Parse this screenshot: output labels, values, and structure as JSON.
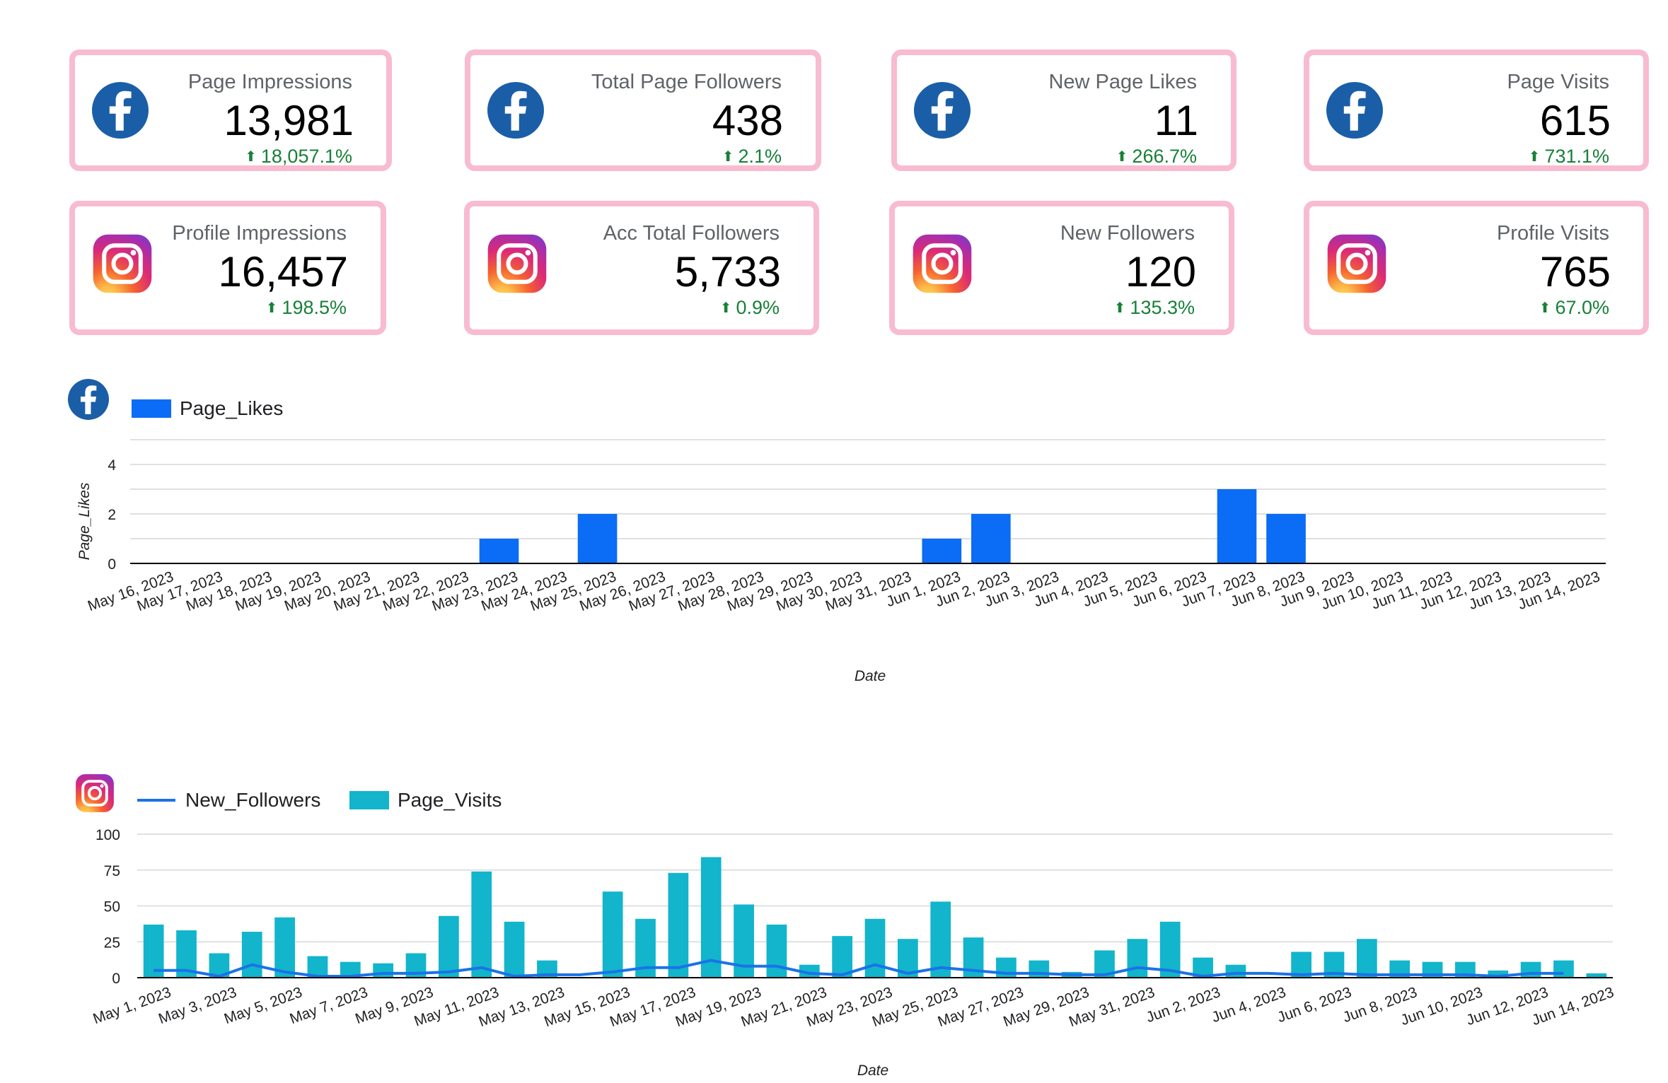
{
  "kpis": [
    {
      "platform": "facebook",
      "icon": "facebook-icon",
      "label": "Page Impressions",
      "value": "13,981",
      "change": "18,057.1%"
    },
    {
      "platform": "facebook",
      "icon": "facebook-icon",
      "label": "Total Page Followers",
      "value": "438",
      "change": "2.1%"
    },
    {
      "platform": "facebook",
      "icon": "facebook-icon",
      "label": "New Page Likes",
      "value": "11",
      "change": "266.7%"
    },
    {
      "platform": "facebook",
      "icon": "facebook-icon",
      "label": "Page Visits",
      "value": "615",
      "change": "731.1%"
    },
    {
      "platform": "instagram",
      "icon": "instagram-icon",
      "label": "Profile Impressions",
      "value": "16,457",
      "change": "198.5%"
    },
    {
      "platform": "instagram",
      "icon": "instagram-icon",
      "label": "Acc Total Followers",
      "value": "5,733",
      "change": "0.9%"
    },
    {
      "platform": "instagram",
      "icon": "instagram-icon",
      "label": "New Followers",
      "value": "120",
      "change": "135.3%"
    },
    {
      "platform": "instagram",
      "icon": "instagram-icon",
      "label": "Profile Visits",
      "value": "765",
      "change": "67.0%"
    }
  ],
  "colors": {
    "kpi_border": "#f8bbd0",
    "positive": "#188038",
    "facebook": "#1b5ea8",
    "page_likes_bar": "#0b6cf5",
    "page_visits_bar": "#12b5cb",
    "new_followers_line": "#1a73e8"
  },
  "chart_data": [
    {
      "type": "bar",
      "title": "",
      "icon": "facebook-icon",
      "xlabel": "Date",
      "ylabel": "Page_Likes",
      "ylim": [
        0,
        5
      ],
      "yticks": [
        0,
        2,
        4
      ],
      "legend_placement": "top-left",
      "grid": true,
      "categories": [
        "May 16, 2023",
        "May 17, 2023",
        "May 18, 2023",
        "May 19, 2023",
        "May 20, 2023",
        "May 21, 2023",
        "May 22, 2023",
        "May 23, 2023",
        "May 24, 2023",
        "May 25, 2023",
        "May 26, 2023",
        "May 27, 2023",
        "May 28, 2023",
        "May 29, 2023",
        "May 30, 2023",
        "May 31, 2023",
        "Jun 1, 2023",
        "Jun 2, 2023",
        "Jun 3, 2023",
        "Jun 4, 2023",
        "Jun 5, 2023",
        "Jun 6, 2023",
        "Jun 7, 2023",
        "Jun 8, 2023",
        "Jun 9, 2023",
        "Jun 10, 2023",
        "Jun 11, 2023",
        "Jun 12, 2023",
        "Jun 13, 2023",
        "Jun 14, 2023"
      ],
      "series": [
        {
          "name": "Page_Likes",
          "kind": "bar",
          "values": [
            0,
            0,
            0,
            0,
            0,
            0,
            0,
            1,
            0,
            2,
            0,
            0,
            0,
            0,
            0,
            0,
            1,
            2,
            0,
            0,
            0,
            0,
            3,
            2,
            0,
            0,
            0,
            0,
            0,
            0
          ]
        }
      ]
    },
    {
      "type": "bar",
      "title": "",
      "icon": "instagram-icon",
      "xlabel": "Date",
      "ylabel": "",
      "ylim": [
        0,
        100
      ],
      "yticks": [
        0,
        25,
        50,
        75,
        100
      ],
      "legend_placement": "top-left",
      "grid": true,
      "categories": [
        "May 1, 2023",
        "May 2, 2023",
        "May 3, 2023",
        "May 4, 2023",
        "May 5, 2023",
        "May 6, 2023",
        "May 7, 2023",
        "May 8, 2023",
        "May 9, 2023",
        "May 10, 2023",
        "May 11, 2023",
        "May 12, 2023",
        "May 13, 2023",
        "May 14, 2023",
        "May 15, 2023",
        "May 16, 2023",
        "May 17, 2023",
        "May 18, 2023",
        "May 19, 2023",
        "May 20, 2023",
        "May 21, 2023",
        "May 22, 2023",
        "May 23, 2023",
        "May 24, 2023",
        "May 25, 2023",
        "May 26, 2023",
        "May 27, 2023",
        "May 28, 2023",
        "May 29, 2023",
        "May 30, 2023",
        "May 31, 2023",
        "Jun 1, 2023",
        "Jun 2, 2023",
        "Jun 3, 2023",
        "Jun 4, 2023",
        "Jun 5, 2023",
        "Jun 6, 2023",
        "Jun 7, 2023",
        "Jun 8, 2023",
        "Jun 9, 2023",
        "Jun 10, 2023",
        "Jun 11, 2023",
        "Jun 12, 2023",
        "Jun 13, 2023",
        "Jun 14, 2023"
      ],
      "tick_labels": [
        "May 1, 2023",
        "May 3, 2023",
        "May 5, 2023",
        "May 7, 2023",
        "May 9, 2023",
        "May 11, 2023",
        "May 13, 2023",
        "May 15, 2023",
        "May 17, 2023",
        "May 19, 2023",
        "May 21, 2023",
        "May 23, 2023",
        "May 25, 2023",
        "May 27, 2023",
        "May 29, 2023",
        "May 31, 2023",
        "Jun 2, 2023",
        "Jun 4, 2023",
        "Jun 6, 2023",
        "Jun 8, 2023",
        "Jun 10, 2023",
        "Jun 12, 2023",
        "Jun 14, 2023"
      ],
      "series": [
        {
          "name": "New_Followers",
          "kind": "line",
          "values": [
            5,
            5,
            1,
            9,
            4,
            1,
            1,
            3,
            3,
            4,
            7,
            1,
            2,
            2,
            4,
            7,
            7,
            12,
            8,
            8,
            3,
            2,
            9,
            3,
            7,
            5,
            3,
            3,
            2,
            2,
            7,
            5,
            1,
            3,
            3,
            2,
            3,
            2,
            2,
            2,
            2,
            1,
            3,
            3,
            null
          ]
        },
        {
          "name": "Page_Visits",
          "kind": "bar",
          "values": [
            37,
            33,
            17,
            32,
            42,
            15,
            11,
            10,
            17,
            43,
            74,
            39,
            12,
            0,
            60,
            41,
            73,
            84,
            51,
            37,
            9,
            29,
            41,
            27,
            53,
            28,
            14,
            12,
            4,
            19,
            27,
            39,
            14,
            9,
            0,
            18,
            18,
            27,
            12,
            11,
            11,
            5,
            11,
            12,
            3
          ]
        }
      ]
    }
  ]
}
